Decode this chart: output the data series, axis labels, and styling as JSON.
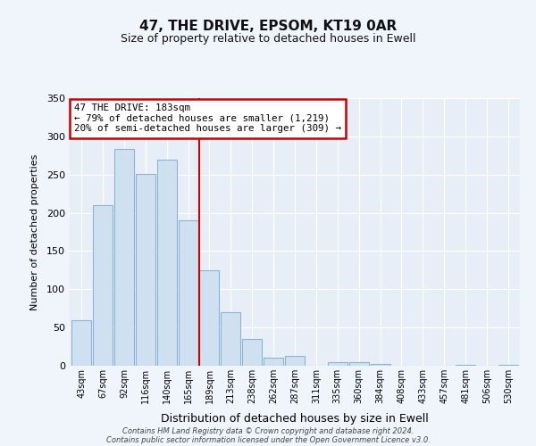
{
  "title": "47, THE DRIVE, EPSOM, KT19 0AR",
  "subtitle": "Size of property relative to detached houses in Ewell",
  "xlabel": "Distribution of detached houses by size in Ewell",
  "ylabel": "Number of detached properties",
  "bin_labels": [
    "43sqm",
    "67sqm",
    "92sqm",
    "116sqm",
    "140sqm",
    "165sqm",
    "189sqm",
    "213sqm",
    "238sqm",
    "262sqm",
    "287sqm",
    "311sqm",
    "335sqm",
    "360sqm",
    "384sqm",
    "408sqm",
    "433sqm",
    "457sqm",
    "481sqm",
    "506sqm",
    "530sqm"
  ],
  "bar_heights": [
    60,
    210,
    283,
    251,
    270,
    190,
    125,
    70,
    35,
    11,
    13,
    0,
    5,
    5,
    2,
    0,
    0,
    0,
    1,
    0,
    1
  ],
  "bar_color": "#cfe0f0",
  "bar_edge_color": "#8ab4d4",
  "vline_color": "#cc0000",
  "annotation_title": "47 THE DRIVE: 183sqm",
  "annotation_line1": "← 79% of detached houses are smaller (1,219)",
  "annotation_line2": "20% of semi-detached houses are larger (309) →",
  "annotation_box_color": "white",
  "annotation_box_edge": "#cc0000",
  "ylim": [
    0,
    350
  ],
  "yticks": [
    0,
    50,
    100,
    150,
    200,
    250,
    300,
    350
  ],
  "footer1": "Contains HM Land Registry data © Crown copyright and database right 2024.",
  "footer2": "Contains public sector information licensed under the Open Government Licence v3.0.",
  "fig_background": "#f0f5fb",
  "plot_background": "#e8eef7",
  "grid_color": "#ffffff"
}
